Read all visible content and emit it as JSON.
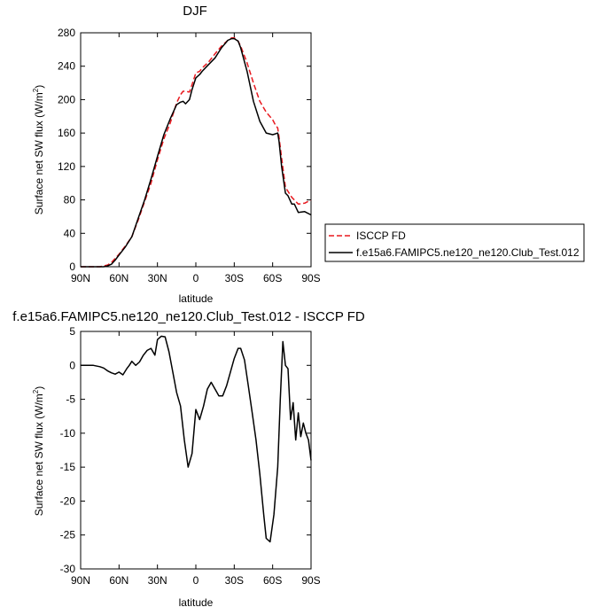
{
  "chart_data": [
    {
      "type": "line",
      "title": "DJF",
      "xlabel": "latitude",
      "ylabel": "Surface net SW flux (W/m²)",
      "xlim": [
        90,
        -90
      ],
      "ylim": [
        0,
        280
      ],
      "x_ticks": [
        90,
        60,
        30,
        0,
        -30,
        -60,
        -90
      ],
      "x_tick_labels": [
        "90N",
        "60N",
        "30N",
        "0",
        "30S",
        "60S",
        "90S"
      ],
      "y_ticks": [
        0,
        40,
        80,
        120,
        160,
        200,
        240,
        280
      ],
      "y_tick_labels": [
        "0",
        "40",
        "80",
        "120",
        "160",
        "200",
        "240",
        "280"
      ],
      "grid": false,
      "legend_position": "right, outside plot",
      "series": [
        {
          "name": "ISCCP FD",
          "color": "#e8191f",
          "dash": "dashed",
          "x": [
            90,
            85,
            80,
            75,
            72,
            69,
            66,
            63,
            60,
            55,
            50,
            45,
            40,
            35,
            30,
            25,
            20,
            15,
            12,
            10,
            8,
            5,
            3,
            0,
            -3,
            -5,
            -10,
            -15,
            -20,
            -25,
            -28,
            -30,
            -33,
            -35,
            -40,
            -45,
            -50,
            -55,
            -60,
            -62,
            -64,
            -65,
            -67,
            -70,
            -75,
            -80,
            -85,
            -90
          ],
          "values": [
            0,
            0,
            0,
            0,
            1,
            2,
            5,
            10,
            15,
            25,
            36,
            56,
            78,
            100,
            128,
            153,
            172,
            196,
            206,
            210,
            210,
            209,
            218,
            232,
            234,
            238,
            245,
            255,
            264,
            271,
            274,
            274,
            270,
            264,
            244,
            220,
            198,
            185,
            176,
            170,
            166,
            155,
            130,
            95,
            83,
            75,
            76,
            80
          ]
        },
        {
          "name": "f.e15a6.FAMIPC5.ne120_ne120.Club_Test.012",
          "color": "#000000",
          "dash": "solid",
          "x": [
            90,
            85,
            80,
            75,
            72,
            69,
            66,
            63,
            60,
            55,
            50,
            45,
            40,
            35,
            30,
            25,
            20,
            15,
            12,
            10,
            8,
            5,
            3,
            0,
            -3,
            -5,
            -10,
            -15,
            -20,
            -25,
            -28,
            -30,
            -33,
            -35,
            -40,
            -45,
            -50,
            -55,
            -60,
            -62,
            -64,
            -65,
            -67,
            -70,
            -72,
            -75,
            -77,
            -80,
            -85,
            -90
          ],
          "values": [
            0,
            0,
            0,
            0,
            0,
            1,
            3,
            8,
            14,
            24,
            36,
            58,
            80,
            105,
            132,
            158,
            177,
            194,
            197,
            198,
            195,
            200,
            212,
            226,
            230,
            234,
            242,
            250,
            262,
            271,
            273,
            273,
            270,
            262,
            234,
            198,
            174,
            160,
            158,
            159,
            160,
            150,
            120,
            88,
            85,
            75,
            75,
            65,
            66,
            62
          ]
        }
      ]
    },
    {
      "type": "line",
      "title": "f.e15a6.FAMIPC5.ne120_ne120.Club_Test.012 - ISCCP FD",
      "xlabel": "latitude",
      "ylabel": "Surface net SW flux (W/m²)",
      "xlim": [
        90,
        -90
      ],
      "ylim": [
        -30,
        5
      ],
      "x_ticks": [
        90,
        60,
        30,
        0,
        -30,
        -60,
        -90
      ],
      "x_tick_labels": [
        "90N",
        "60N",
        "30N",
        "0",
        "30S",
        "60S",
        "90S"
      ],
      "y_ticks": [
        5,
        0,
        -5,
        -10,
        -15,
        -20,
        -25,
        -30
      ],
      "y_tick_labels": [
        "5",
        "0",
        "-5",
        "-10",
        "-15",
        "-20",
        "-25",
        "-30"
      ],
      "grid": false,
      "series": [
        {
          "color": "#000000",
          "dash": "solid",
          "x": [
            90,
            85,
            80,
            75,
            72,
            69,
            66,
            63,
            60,
            57,
            54,
            52,
            50,
            47,
            44,
            41,
            38,
            35,
            32,
            30,
            27,
            24,
            21,
            18,
            15,
            12,
            9,
            6,
            3,
            0,
            -3,
            -6,
            -9,
            -12,
            -15,
            -18,
            -21,
            -24,
            -27,
            -30,
            -33,
            -35,
            -38,
            -41,
            -44,
            -47,
            -50,
            -53,
            -55,
            -58,
            -61,
            -64,
            -66,
            -68,
            -70,
            -72,
            -74,
            -76,
            -78,
            -80,
            -82,
            -84,
            -86,
            -88,
            -90
          ],
          "values": [
            0,
            0,
            0,
            -0.2,
            -0.4,
            -0.8,
            -1.1,
            -1.3,
            -1.0,
            -1.4,
            -0.5,
            0,
            0.6,
            0,
            0.5,
            1.5,
            2.2,
            2.5,
            1.5,
            3.8,
            4.3,
            4.2,
            2,
            -1,
            -4,
            -6,
            -11,
            -15,
            -13,
            -6.5,
            -8,
            -6,
            -3.5,
            -2.5,
            -3.5,
            -4.5,
            -4.5,
            -3,
            -1,
            1,
            2.5,
            2.5,
            0.8,
            -3,
            -7,
            -11,
            -16,
            -22,
            -25.5,
            -26,
            -22,
            -15,
            -5,
            3.5,
            0,
            -0.5,
            -8,
            -5.5,
            -11,
            -7,
            -10.5,
            -8.5,
            -10,
            -11,
            -14
          ]
        }
      ]
    }
  ]
}
